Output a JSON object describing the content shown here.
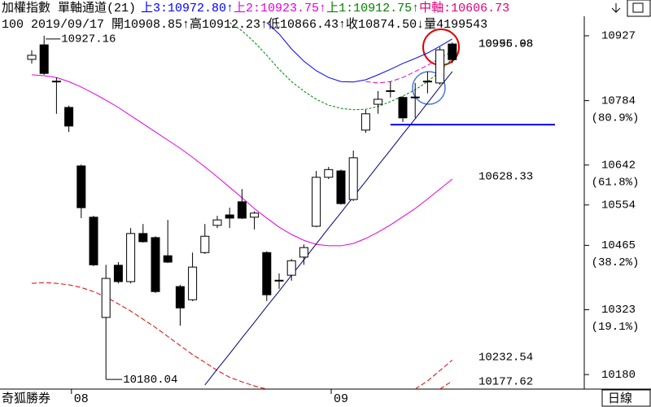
{
  "header": {
    "title": "加權指數 單軸通道(21)",
    "bands": [
      {
        "text": "上3:10972.80↑",
        "color": "#0000ff"
      },
      {
        "text": "上2:10923.75↑",
        "color": "#e000e0"
      },
      {
        "text": "上1:10912.75↑",
        "color": "#008000"
      },
      {
        "text": "中軸:10606.73",
        "color": "#e0007a"
      }
    ],
    "info": "100 2019/09/17 開10908.85↑高10912.23↑低10866.43↑收10874.50↓量4199543"
  },
  "chart_data": {
    "type": "candlestick",
    "categories": [
      null,
      null,
      null,
      null,
      "08",
      null,
      null,
      null,
      null,
      null,
      null,
      null,
      null,
      null,
      null,
      null,
      null,
      null,
      null,
      null,
      null,
      null,
      null,
      null,
      null,
      "09",
      null,
      null,
      null,
      null,
      null,
      null,
      null,
      null,
      null
    ],
    "open": [
      10875,
      10907,
      10827,
      10769,
      10640,
      10527,
      10306,
      10421,
      10385,
      10491,
      10482,
      10442,
      10374,
      10345,
      10449,
      10509,
      10532,
      10561,
      10527,
      10449,
      10388,
      10399,
      10439,
      10507,
      10615,
      10629,
      10566,
      10719,
      10776,
      10806,
      10791,
      10792,
      10827,
      10823,
      10908.85
    ],
    "high": [
      10895,
      10927.16,
      10835,
      10773,
      10643,
      10530,
      10422,
      10428,
      10503,
      10512,
      10485,
      10521,
      10378,
      10449,
      10512,
      10530,
      10548,
      10589,
      10540,
      10452,
      10403,
      10435,
      10467,
      10629,
      10638,
      10632,
      10674,
      10764,
      10805,
      10826,
      10794,
      10823,
      10848,
      10902,
      10912.23
    ],
    "low": [
      10866,
      10841,
      10755,
      10715,
      10525,
      10419,
      10180.04,
      10381,
      10381,
      10471,
      10360,
      10426,
      10288,
      10342,
      10446,
      10503,
      10503,
      10523,
      10500,
      10342,
      10369,
      10387,
      10422,
      10505,
      10611,
      10555,
      10563,
      10713,
      10755,
      10791,
      10737,
      10746,
      10800,
      10819,
      10866.43
    ],
    "close": [
      10884,
      10844,
      10826,
      10728,
      10548,
      10422,
      10392,
      10385,
      10491,
      10473,
      10363,
      10428,
      10327,
      10417,
      10485,
      10521,
      10525,
      10525,
      10536,
      10356,
      10387,
      10431,
      10460,
      10615,
      10632,
      10557,
      10658,
      10755,
      10787,
      10805,
      10746,
      10791,
      10826,
      10896,
      10874.5
    ],
    "up_color": "#ffffff",
    "down_color": "#000000",
    "ylim": [
      10148,
      10970
    ],
    "yticks": [
      10927,
      10784,
      10642,
      10554,
      10465,
      10323,
      10180
    ],
    "ytick_notes": [
      {
        "value": 10784,
        "label": "(80.9%)"
      },
      {
        "value": 10642,
        "label": "(61.8%)"
      },
      {
        "value": 10465,
        "label": "(38.2%)"
      },
      {
        "value": 10323,
        "label": "(19.1%)"
      }
    ],
    "lines": [
      {
        "color": "#e000e0",
        "dash": "none",
        "values": [
          10841,
          10839,
          10835,
          10826,
          10814,
          10800,
          10785,
          10769,
          10751,
          10733,
          10715,
          10697,
          10679,
          10659,
          10638,
          10616,
          10593,
          10570,
          10546,
          10525,
          10505,
          10489,
          10476,
          10467,
          10464,
          10464,
          10469,
          10480,
          10494,
          10510,
          10528,
          10546,
          10567,
          10589,
          10611
        ]
      },
      {
        "color": "#0000ff",
        "dash": "none",
        "values": [
          null,
          null,
          null,
          null,
          null,
          null,
          null,
          null,
          null,
          null,
          null,
          null,
          null,
          null,
          null,
          null,
          null,
          null,
          null,
          10956,
          10931,
          10898,
          10871,
          10850,
          10835,
          10826,
          10825,
          10830,
          10841,
          10853,
          10866,
          10877,
          10889,
          10904,
          10920
        ]
      },
      {
        "color": "#008000",
        "dash": "3,2",
        "values": [
          null,
          null,
          null,
          null,
          null,
          null,
          null,
          null,
          null,
          null,
          null,
          null,
          null,
          null,
          null,
          null,
          10956,
          10938,
          10913,
          10884,
          10853,
          10826,
          10805,
          10787,
          10774,
          10767,
          10764,
          10765,
          10771,
          10782,
          10794,
          10808,
          10826,
          10848,
          10877
        ]
      },
      {
        "color": "#e000e0",
        "dash": "6,3",
        "values": [
          null,
          null,
          null,
          null,
          null,
          null,
          null,
          null,
          null,
          null,
          null,
          null,
          null,
          null,
          null,
          null,
          null,
          null,
          null,
          null,
          null,
          null,
          null,
          null,
          null,
          null,
          null,
          10826,
          10823,
          10826,
          10835,
          10848,
          10862,
          10877,
          10893
        ]
      },
      {
        "color": "#e00000",
        "dash": "6,3",
        "values": [
          10381,
          10383,
          10381,
          10378,
          10372,
          10363,
          10351,
          10336,
          10320,
          10302,
          10284,
          10264,
          10244,
          10224,
          10207,
          10189,
          10174,
          10164,
          10155,
          10148,
          null,
          null,
          null,
          null,
          null,
          null,
          null,
          null,
          null,
          null,
          null,
          null,
          null,
          null,
          null
        ]
      },
      {
        "color": "#e00000",
        "dash": "6,3",
        "values": [
          null,
          null,
          null,
          null,
          null,
          null,
          null,
          null,
          null,
          null,
          null,
          null,
          null,
          null,
          null,
          null,
          null,
          null,
          null,
          null,
          null,
          null,
          null,
          null,
          null,
          null,
          null,
          null,
          null,
          null,
          null,
          10148,
          10166,
          10189,
          10212
        ]
      },
      {
        "color": "#e00000",
        "dash": "6,3",
        "values": [
          null,
          null,
          null,
          null,
          null,
          null,
          null,
          null,
          null,
          null,
          null,
          null,
          null,
          null,
          null,
          null,
          null,
          null,
          null,
          null,
          null,
          null,
          null,
          null,
          null,
          null,
          null,
          null,
          null,
          null,
          null,
          null,
          null,
          10148,
          10166
        ]
      },
      {
        "color": "#000080",
        "dash": "none",
        "values": [
          null,
          null,
          null,
          null,
          null,
          null,
          null,
          null,
          null,
          null,
          null,
          null,
          null,
          null,
          10157,
          10192,
          10226,
          10261,
          10295,
          10330,
          10364,
          10399,
          10433,
          10468,
          10503,
          10537,
          10572,
          10606,
          10641,
          10675,
          10710,
          10744,
          10779,
          10814,
          10848
        ]
      }
    ],
    "support": {
      "value": 10731,
      "color": "#0000ff"
    },
    "line_labels": [
      "10995.08",
      "10956.98",
      "10628.33",
      "10232.54",
      "10177.62"
    ]
  },
  "footer": {
    "brand": "奇狐勝券",
    "period": "日線"
  }
}
